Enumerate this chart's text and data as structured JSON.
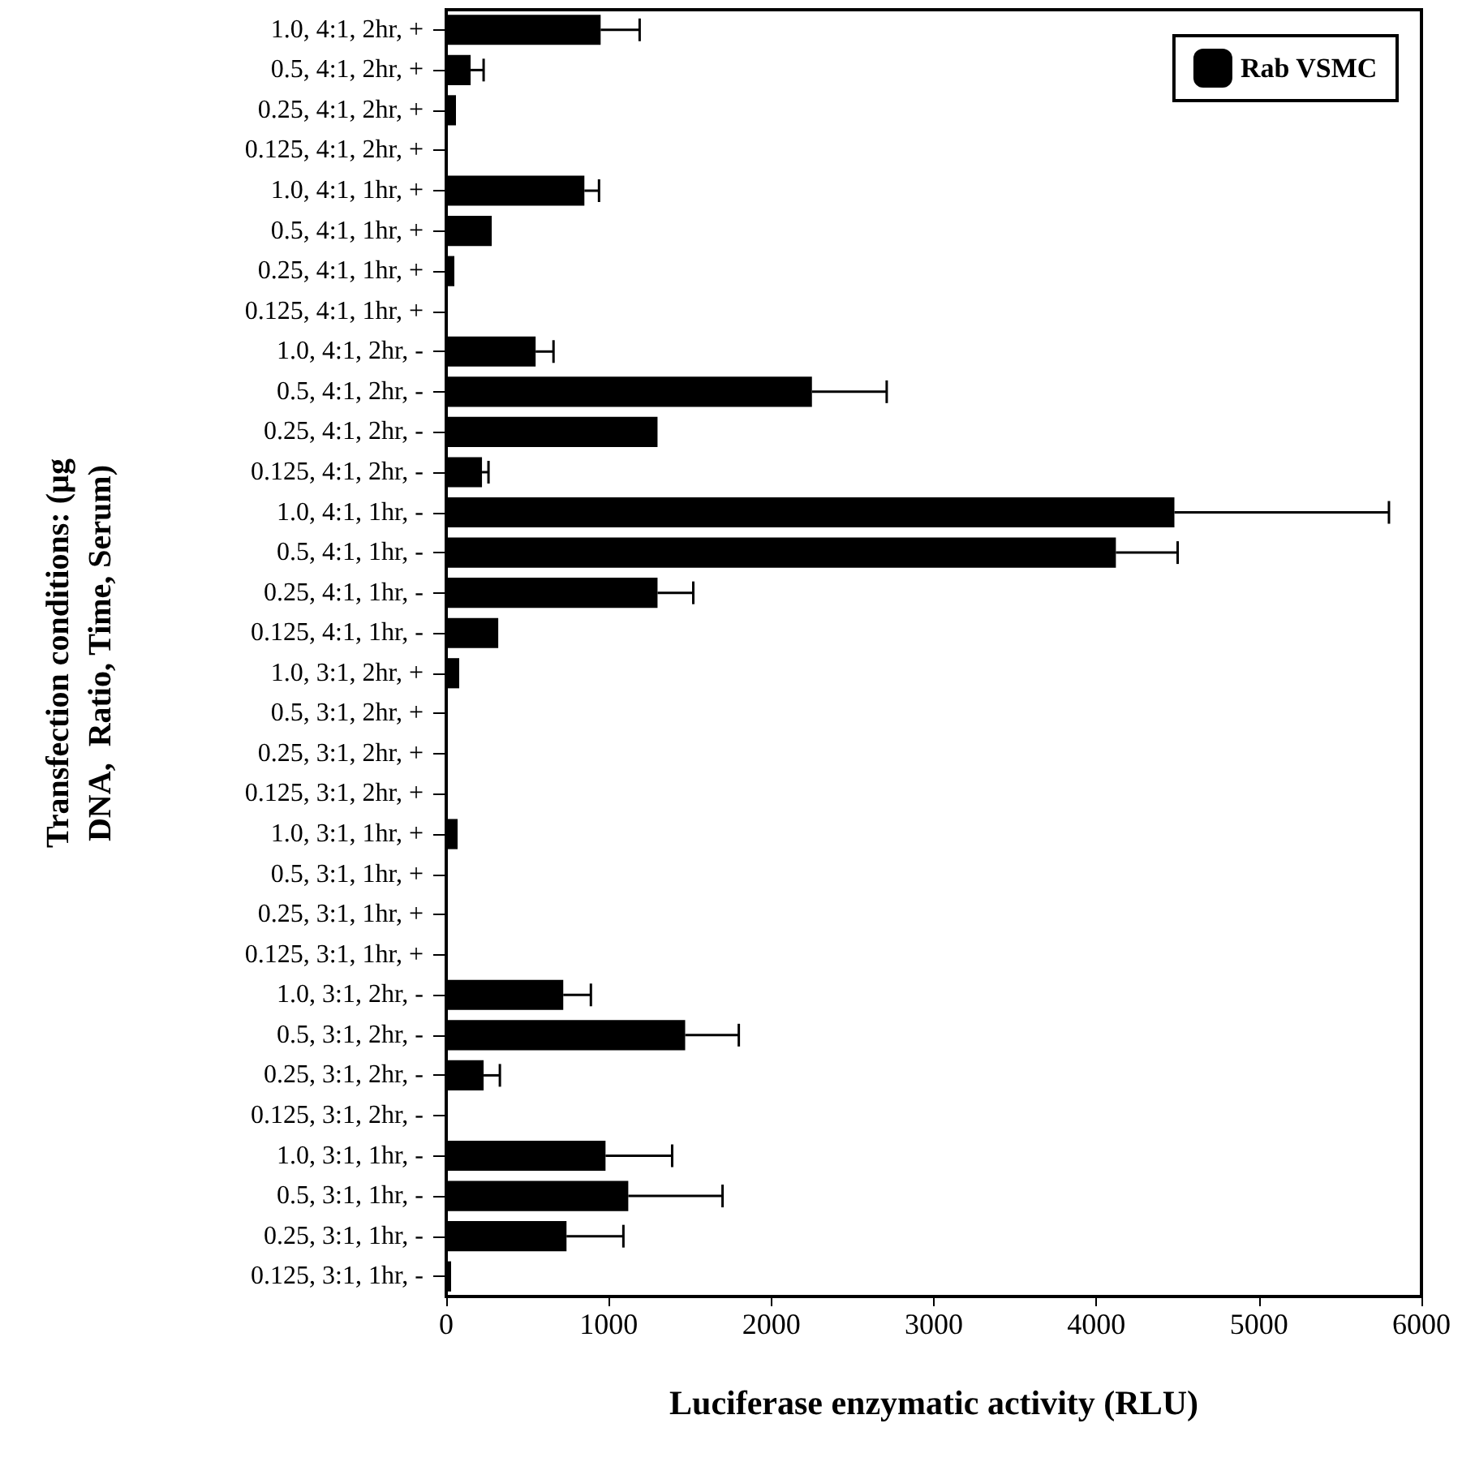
{
  "chart_data": {
    "type": "bar",
    "orientation": "horizontal",
    "xlabel": "Luciferase enzymatic activity (RLU)",
    "ylabel": "Transfection conditions: (µg\nDNA,  Ratio, Time, Serum)",
    "categories": [
      "1.0, 4:1, 2hr, +",
      "0.5, 4:1, 2hr, +",
      "0.25, 4:1, 2hr, +",
      "0.125, 4:1, 2hr, +",
      "1.0, 4:1, 1hr, +",
      "0.5, 4:1, 1hr, +",
      "0.25, 4:1, 1hr, +",
      "0.125, 4:1, 1hr, +",
      "1.0, 4:1, 2hr, -",
      "0.5, 4:1, 2hr, -",
      "0.25, 4:1, 2hr, -",
      "0.125, 4:1, 2hr, -",
      "1.0, 4:1, 1hr, -",
      "0.5, 4:1, 1hr, -",
      "0.25, 4:1, 1hr, -",
      "0.125, 4:1, 1hr, -",
      "1.0, 3:1, 2hr, +",
      "0.5, 3:1, 2hr, +",
      "0.25, 3:1, 2hr, +",
      "0.125, 3:1, 2hr, +",
      "1.0, 3:1, 1hr, +",
      "0.5, 3:1, 1hr, +",
      "0.25, 3:1, 1hr, +",
      "0.125, 3:1, 1hr, +",
      "1.0, 3:1, 2hr, -",
      "0.5, 3:1, 2hr, -",
      "0.25, 3:1, 2hr, -",
      "0.125, 3:1, 2hr, -",
      "1.0, 3:1, 1hr, -",
      "0.5, 3:1, 1hr, -",
      "0.25, 3:1, 1hr, -",
      "0.125, 3:1, 1hr, -"
    ],
    "series": [
      {
        "name": "Rab VSMC",
        "color": "#000000",
        "values": [
          950,
          150,
          60,
          0,
          850,
          280,
          50,
          0,
          550,
          2250,
          1300,
          220,
          4480,
          4120,
          1300,
          320,
          80,
          10,
          10,
          10,
          70,
          0,
          0,
          0,
          720,
          1470,
          230,
          10,
          980,
          1120,
          740,
          30
        ],
        "errors": [
          [
            950,
            1190
          ],
          [
            150,
            230
          ],
          null,
          null,
          [
            850,
            940
          ],
          null,
          null,
          null,
          [
            550,
            660
          ],
          [
            2250,
            2710
          ],
          null,
          [
            220,
            260
          ],
          [
            4480,
            5800
          ],
          [
            4120,
            4500
          ],
          [
            1300,
            1520
          ],
          null,
          null,
          null,
          null,
          null,
          null,
          null,
          null,
          null,
          [
            720,
            890
          ],
          [
            1470,
            1800
          ],
          [
            230,
            330
          ],
          null,
          [
            980,
            1390
          ],
          [
            1120,
            1700
          ],
          [
            740,
            1090
          ],
          null
        ]
      }
    ],
    "xlim": [
      0,
      6000
    ],
    "xticks": [
      0,
      1000,
      2000,
      3000,
      4000,
      5000,
      6000
    ],
    "legend": "top right"
  }
}
